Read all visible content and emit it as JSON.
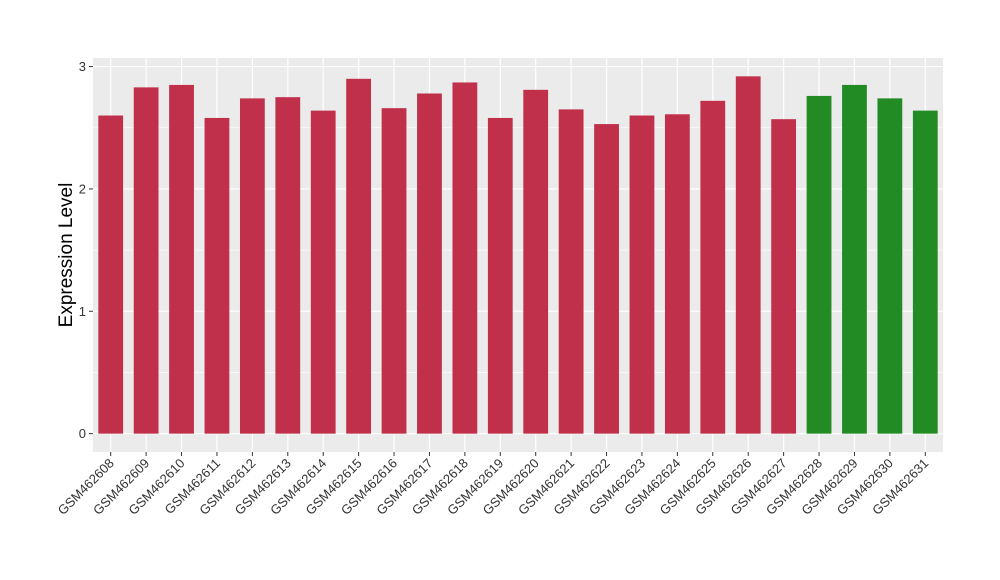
{
  "chart_data": {
    "type": "bar",
    "title": "",
    "xlabel": "",
    "ylabel": "Expression Level",
    "ylim": [
      -0.15,
      3.07
    ],
    "yticks": [
      0,
      1,
      2,
      3
    ],
    "grid": true,
    "legend": "none",
    "colors": {
      "panel": "#EBEBEB",
      "grid": "#FFFFFF",
      "series_a": "#C0304A",
      "series_b": "#238B23"
    },
    "categories": [
      "GSM462608",
      "GSM462609",
      "GSM462610",
      "GSM462611",
      "GSM462612",
      "GSM462613",
      "GSM462614",
      "GSM462615",
      "GSM462616",
      "GSM462617",
      "GSM462618",
      "GSM462619",
      "GSM462620",
      "GSM462621",
      "GSM462622",
      "GSM462623",
      "GSM462624",
      "GSM462625",
      "GSM462626",
      "GSM462627",
      "GSM462628",
      "GSM462629",
      "GSM462630",
      "GSM462631"
    ],
    "values": [
      2.6,
      2.83,
      2.85,
      2.58,
      2.74,
      2.75,
      2.64,
      2.9,
      2.66,
      2.78,
      2.87,
      2.58,
      2.81,
      2.65,
      2.53,
      2.6,
      2.61,
      2.72,
      2.92,
      2.57,
      2.76,
      2.85,
      2.74,
      2.64
    ],
    "bar_colors": [
      "#C0304A",
      "#C0304A",
      "#C0304A",
      "#C0304A",
      "#C0304A",
      "#C0304A",
      "#C0304A",
      "#C0304A",
      "#C0304A",
      "#C0304A",
      "#C0304A",
      "#C0304A",
      "#C0304A",
      "#C0304A",
      "#C0304A",
      "#C0304A",
      "#C0304A",
      "#C0304A",
      "#C0304A",
      "#C0304A",
      "#238B23",
      "#238B23",
      "#238B23",
      "#238B23"
    ]
  }
}
